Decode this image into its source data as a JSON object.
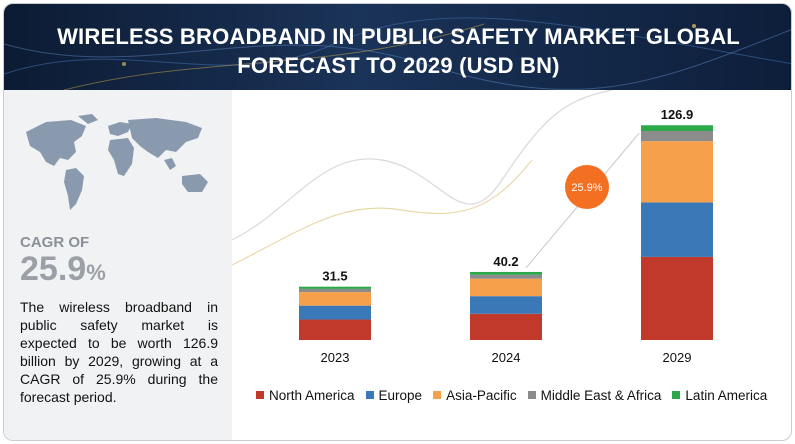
{
  "header": {
    "title": "WIRELESS BROADBAND IN PUBLIC SAFETY MARKET GLOBAL\nFORECAST TO 2029 (USD BN)"
  },
  "summary": {
    "cagr_label": "CAGR OF",
    "cagr_value": "25.9",
    "cagr_unit": "%",
    "description": "The wireless broadband in public safety market is expected to be worth 126.9 billion by 2029, growing at a CAGR of 25.9% during the forecast period."
  },
  "chart_data": {
    "type": "bar",
    "stacked": true,
    "categories": [
      "2023",
      "2024",
      "2029"
    ],
    "totals": [
      "31.5",
      "40.2",
      "126.9"
    ],
    "growth_badge": "25.9%",
    "ylim": [
      0,
      130
    ],
    "series": [
      {
        "name": "North America",
        "color": "#c0392b",
        "values": [
          12.1,
          15.5,
          49.1
        ]
      },
      {
        "name": "Europe",
        "color": "#3a78b8",
        "values": [
          8.2,
          10.4,
          32.2
        ]
      },
      {
        "name": "Asia-Pacific",
        "color": "#f7a04b",
        "values": [
          8.0,
          10.3,
          36.2
        ]
      },
      {
        "name": "Middle East & Africa",
        "color": "#8c8c8c",
        "values": [
          1.9,
          2.4,
          6.0
        ]
      },
      {
        "name": "Latin America",
        "color": "#2aa84a",
        "values": [
          1.3,
          1.6,
          3.4
        ]
      }
    ],
    "grid": false,
    "legend": "bottom"
  }
}
